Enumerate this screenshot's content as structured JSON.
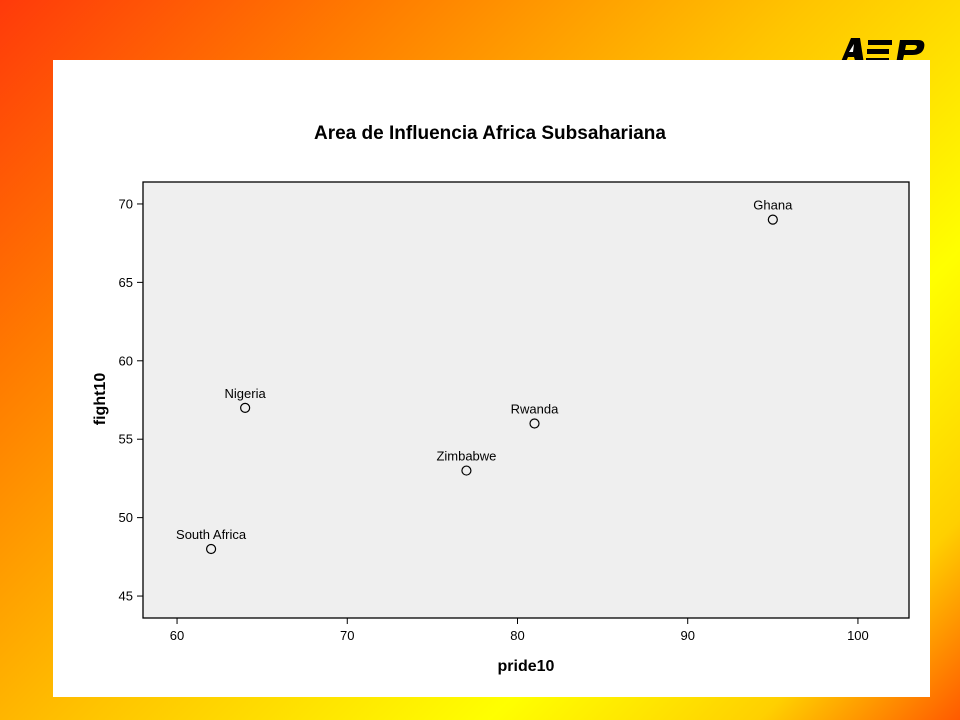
{
  "slide": {
    "accent_colors": {
      "gradient_orange": "#ff3a0a",
      "gradient_yellow": "#ffff00",
      "logo": "#000000"
    },
    "logo_icon": "asep-logo"
  },
  "chart_data": {
    "type": "scatter",
    "title": "Area de Influencia Africa Subsahariana",
    "xlabel": "pride10",
    "ylabel": "fight10",
    "xlim": [
      58,
      103
    ],
    "ylim": [
      43.6,
      71.4
    ],
    "xticks": [
      60,
      70,
      80,
      90,
      100
    ],
    "yticks": [
      45,
      50,
      55,
      60,
      65,
      70
    ],
    "plot_background": "#efefef",
    "grid": false,
    "points": [
      {
        "label": "Ghana",
        "x": 95,
        "y": 69
      },
      {
        "label": "Nigeria",
        "x": 64,
        "y": 57
      },
      {
        "label": "Rwanda",
        "x": 81,
        "y": 56
      },
      {
        "label": "Zimbabwe",
        "x": 77,
        "y": 53
      },
      {
        "label": "South Africa",
        "x": 62,
        "y": 48
      }
    ]
  }
}
